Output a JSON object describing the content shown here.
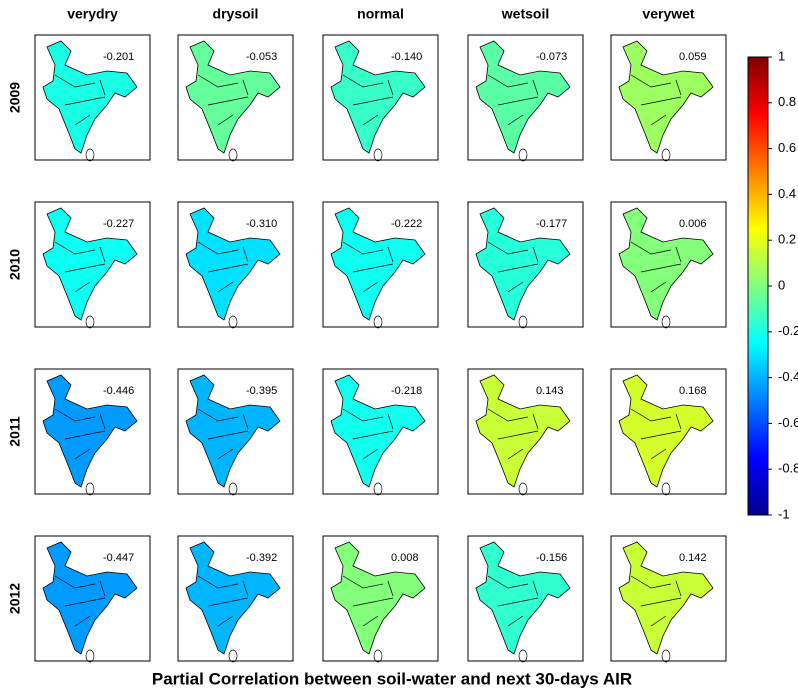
{
  "title": "Partial Correlation between soil-water and next 30-days AIR",
  "columns": [
    "verydry",
    "drysoil",
    "normal",
    "wetsoil",
    "verywet"
  ],
  "rows": [
    {
      "label": "2009",
      "values": [
        "-0.201",
        "-0.053",
        "-0.140",
        "-0.073",
        "0.059"
      ]
    },
    {
      "label": "2010",
      "values": [
        "-0.227",
        "-0.310",
        "-0.222",
        "-0.177",
        "0.006"
      ]
    },
    {
      "label": "2011",
      "values": [
        "-0.446",
        "-0.395",
        "-0.218",
        "0.143",
        "0.168"
      ]
    },
    {
      "label": "2012",
      "values": [
        "-0.447",
        "-0.392",
        "0.008",
        "-0.156",
        "0.142"
      ]
    }
  ],
  "colorbar": {
    "lim": [
      -1,
      1
    ],
    "ticks": [
      1,
      0.8,
      0.6,
      0.4,
      0.2,
      0,
      -0.2,
      -0.4,
      -0.6,
      -0.8,
      -1
    ]
  }
}
